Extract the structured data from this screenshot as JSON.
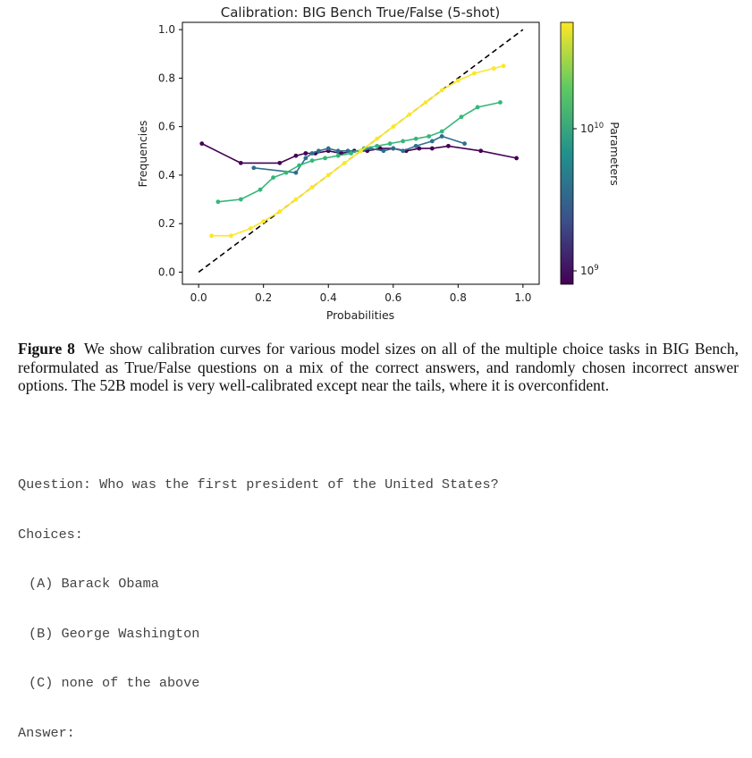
{
  "chart_data": {
    "type": "line",
    "title": "Calibration: BIG Bench True/False (5-shot)",
    "xlabel": "Probabilities",
    "ylabel": "Frequencies",
    "xlim": [
      -0.05,
      1.05
    ],
    "ylim": [
      -0.05,
      1.03
    ],
    "xticks": [
      "0.0",
      "0.2",
      "0.4",
      "0.6",
      "0.8",
      "1.0"
    ],
    "yticks": [
      "0.0",
      "0.2",
      "0.4",
      "0.6",
      "0.8",
      "1.0"
    ],
    "grid": false,
    "reference_line": {
      "x": [
        0,
        1
      ],
      "y": [
        0,
        1
      ],
      "style": "dashed",
      "color": "#000000"
    },
    "colorbar": {
      "label": "Parameters",
      "scale": "log",
      "ticks": [
        "10^9",
        "10^10"
      ],
      "colormap": [
        "#440154",
        "#3b528b",
        "#21918c",
        "#5ec962",
        "#fde725"
      ]
    },
    "series": [
      {
        "color": "#440154",
        "x": [
          0.01,
          0.13,
          0.25,
          0.3,
          0.33,
          0.36,
          0.4,
          0.44,
          0.48,
          0.52,
          0.56,
          0.6,
          0.64,
          0.68,
          0.72,
          0.77,
          0.87,
          0.98
        ],
        "y": [
          0.53,
          0.45,
          0.45,
          0.48,
          0.49,
          0.49,
          0.5,
          0.49,
          0.5,
          0.5,
          0.51,
          0.51,
          0.5,
          0.51,
          0.51,
          0.52,
          0.5,
          0.47
        ]
      },
      {
        "color": "#2e6f8e",
        "x": [
          0.17,
          0.3,
          0.33,
          0.35,
          0.37,
          0.4,
          0.43,
          0.46,
          0.5,
          0.53,
          0.57,
          0.6,
          0.63,
          0.67,
          0.72,
          0.75,
          0.82
        ],
        "y": [
          0.43,
          0.41,
          0.47,
          0.49,
          0.5,
          0.51,
          0.5,
          0.5,
          0.5,
          0.51,
          0.5,
          0.51,
          0.5,
          0.52,
          0.54,
          0.56,
          0.53
        ]
      },
      {
        "color": "#35b779",
        "x": [
          0.06,
          0.13,
          0.19,
          0.23,
          0.27,
          0.31,
          0.35,
          0.39,
          0.43,
          0.47,
          0.51,
          0.55,
          0.59,
          0.63,
          0.67,
          0.71,
          0.75,
          0.81,
          0.86,
          0.93
        ],
        "y": [
          0.29,
          0.3,
          0.34,
          0.39,
          0.41,
          0.44,
          0.46,
          0.47,
          0.48,
          0.49,
          0.51,
          0.52,
          0.53,
          0.54,
          0.55,
          0.56,
          0.58,
          0.64,
          0.68,
          0.7
        ]
      },
      {
        "color": "#fde725",
        "x": [
          0.04,
          0.1,
          0.16,
          0.2,
          0.25,
          0.3,
          0.35,
          0.4,
          0.45,
          0.5,
          0.55,
          0.6,
          0.65,
          0.7,
          0.75,
          0.8,
          0.85,
          0.91,
          0.94
        ],
        "y": [
          0.15,
          0.15,
          0.18,
          0.21,
          0.25,
          0.3,
          0.35,
          0.4,
          0.45,
          0.5,
          0.55,
          0.6,
          0.65,
          0.7,
          0.75,
          0.79,
          0.82,
          0.84,
          0.85
        ]
      }
    ]
  },
  "caption": {
    "label": "Figure 8",
    "text": "We show calibration curves for various model sizes on all of the multiple choice tasks in BIG Bench, reformulated as True/False questions on a mix of the correct answers, and randomly chosen incorrect answer options. The 52B model is very well-calibrated except near the tails, where it is overconfident."
  },
  "prompt": {
    "question": "Question: Who was the first president of the United States?",
    "choices_label": "Choices:",
    "choices": [
      "(A) Barack Obama",
      "(B) George Washington",
      "(C) none of the above"
    ],
    "answer_label": "Answer:"
  }
}
